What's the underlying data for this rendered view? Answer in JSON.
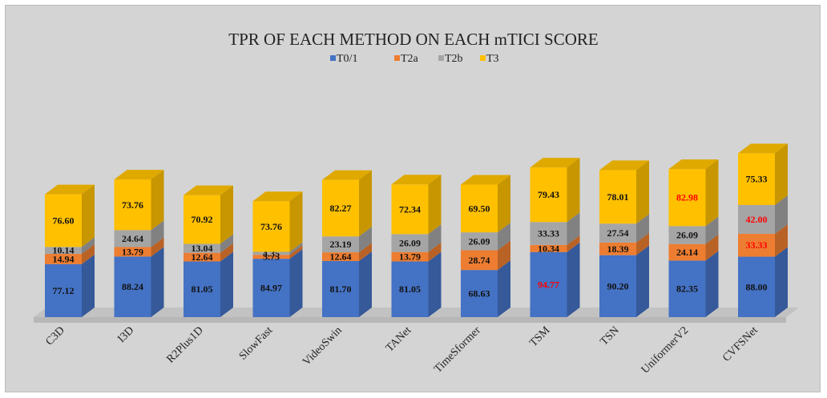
{
  "chart_data": {
    "type": "bar",
    "stacked": true,
    "title": "TPR OF EACH METHOD ON EACH mTICI SCORE",
    "legend_position": "top",
    "categories": [
      "C3D",
      "I3D",
      "R2Plus1D",
      "SlowFast",
      "VideoSwin",
      "TANet",
      "TimeSformer",
      "TSM",
      "TSN",
      "UniformerV2",
      "CVFSNet"
    ],
    "series": [
      {
        "name": "T0/1",
        "color": "#4472c4",
        "values": [
          77.12,
          88.24,
          81.05,
          84.97,
          81.7,
          81.05,
          68.63,
          94.77,
          90.2,
          82.35,
          88.0
        ],
        "labels": [
          "77.12",
          "88.24",
          "81.05",
          "84.97",
          "81.70",
          "81.05",
          "68.63",
          "94.77",
          "90.20",
          "82.35",
          "88.00"
        ]
      },
      {
        "name": "T2a",
        "color": "#ed7d31",
        "values": [
          14.94,
          13.79,
          12.64,
          5.75,
          12.64,
          13.79,
          28.74,
          10.34,
          18.39,
          24.14,
          33.33
        ],
        "labels": [
          "14.94",
          "13.79",
          "12.64",
          "5.75",
          "12.64",
          "13.79",
          "28.74",
          "10.34",
          "18.39",
          "24.14",
          "33.33"
        ]
      },
      {
        "name": "T2b",
        "color": "#a5a5a5",
        "values": [
          10.14,
          24.64,
          13.04,
          4.35,
          23.19,
          26.09,
          26.09,
          33.33,
          27.54,
          26.09,
          42.0
        ],
        "labels": [
          "10.14",
          "24.64",
          "13.04",
          "4.35",
          "23.19",
          "26.09",
          "26.09",
          "33.33",
          "27.54",
          "26.09",
          "42.00"
        ]
      },
      {
        "name": "T3",
        "color": "#ffc000",
        "values": [
          76.6,
          73.76,
          70.92,
          73.76,
          82.27,
          72.34,
          69.5,
          79.43,
          78.01,
          82.98,
          75.33
        ],
        "labels": [
          "76.60",
          "73.76",
          "70.92",
          "73.76",
          "82.27",
          "72.34",
          "69.50",
          "79.43",
          "78.01",
          "82.98",
          "75.33"
        ]
      }
    ],
    "highlight_color": "#ff0000",
    "highlighted_labels": [
      {
        "series": 0,
        "category": 7
      },
      {
        "series": 3,
        "category": 9
      },
      {
        "series": 1,
        "category": 10
      },
      {
        "series": 2,
        "category": 10
      }
    ],
    "grid": false
  }
}
